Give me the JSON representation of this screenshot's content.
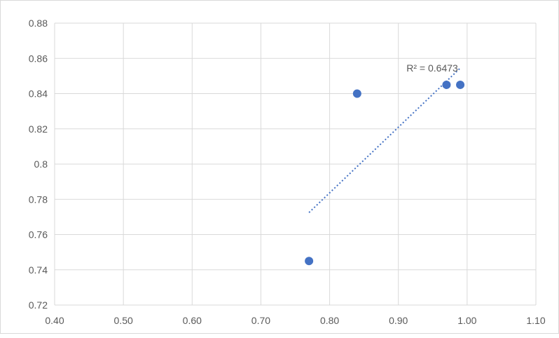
{
  "chart_data": {
    "type": "scatter",
    "title": "",
    "xlabel": "",
    "ylabel": "",
    "xlim": [
      0.4,
      1.1
    ],
    "ylim": [
      0.72,
      0.88
    ],
    "x_ticks": [
      0.4,
      0.5,
      0.6,
      0.7,
      0.8,
      0.9,
      1.0,
      1.1
    ],
    "x_tick_labels": [
      "0.40",
      "0.50",
      "0.60",
      "0.70",
      "0.80",
      "0.90",
      "1.00",
      "1.10"
    ],
    "y_ticks": [
      0.72,
      0.74,
      0.76,
      0.78,
      0.8,
      0.82,
      0.84,
      0.86,
      0.88
    ],
    "y_tick_labels": [
      "0.72",
      "0.74",
      "0.76",
      "0.78",
      "0.8",
      "0.82",
      "0.84",
      "0.86",
      "0.88"
    ],
    "grid": true,
    "legend": "none",
    "series": [
      {
        "color": "#4472c4",
        "points": [
          {
            "x": 0.77,
            "y": 0.745
          },
          {
            "x": 0.84,
            "y": 0.84
          },
          {
            "x": 0.97,
            "y": 0.845
          },
          {
            "x": 0.99,
            "y": 0.845
          }
        ]
      }
    ],
    "trendline": {
      "kind": "linear",
      "style": "dotted",
      "color": "#4472c4",
      "start": {
        "x": 0.77,
        "y": 0.7725
      },
      "end": {
        "x": 0.99,
        "y": 0.8545
      },
      "label": "R² = 0.6473"
    }
  }
}
